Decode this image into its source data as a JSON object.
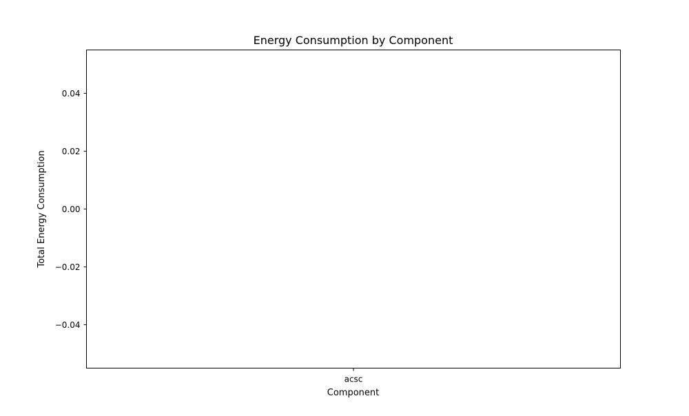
{
  "chart_data": {
    "type": "bar",
    "title": "Energy Consumption by Component",
    "xlabel": "Component",
    "ylabel": "Total Energy Consumption",
    "categories": [
      "acsc"
    ],
    "values": [
      0
    ],
    "ylim": [
      -0.055,
      0.055
    ],
    "yticks": [
      -0.04,
      -0.02,
      0.0,
      0.02,
      0.04
    ],
    "ytick_labels": [
      "−0.04",
      "−0.02",
      "0.00",
      "0.02",
      "0.04"
    ],
    "grid": false,
    "bar_color": "#1f77b4"
  }
}
